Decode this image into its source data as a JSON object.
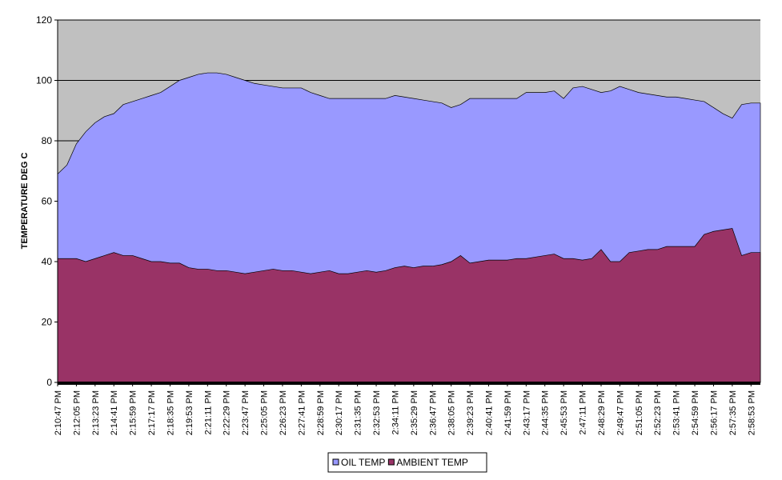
{
  "chart_data": {
    "type": "area",
    "y_label": "TEMPERATURE DEG C",
    "categories": [
      "2:10:47 PM",
      null,
      "2:12:05 PM",
      null,
      "2:13:23 PM",
      null,
      "2:14:41 PM",
      null,
      "2:15:59 PM",
      null,
      "2:17:17 PM",
      null,
      "2:18:35 PM",
      null,
      "2:19:53 PM",
      null,
      "2:21:11 PM",
      null,
      "2:22:29 PM",
      null,
      "2:23:47 PM",
      null,
      "2:25:05 PM",
      null,
      "2:26:23 PM",
      null,
      "2:27:41 PM",
      null,
      "2:28:59 PM",
      null,
      "2:30:17 PM",
      null,
      "2:31:35 PM",
      null,
      "2:32:53 PM",
      null,
      "2:34:11 PM",
      null,
      "2:35:29 PM",
      null,
      "2:36:47 PM",
      null,
      "2:38:05 PM",
      null,
      "2:39:23 PM",
      null,
      "2:40:41 PM",
      null,
      "2:41:59 PM",
      null,
      "2:43:17 PM",
      null,
      "2:44:35 PM",
      null,
      "2:45:53 PM",
      null,
      "2:47:11 PM",
      null,
      "2:48:29 PM",
      null,
      "2:49:47 PM",
      null,
      "2:51:05 PM",
      null,
      "2:52:23 PM",
      null,
      "2:53:41 PM",
      null,
      "2:54:59 PM",
      null,
      "2:56:17 PM",
      null,
      "2:57:35 PM",
      null,
      "2:58:53 PM",
      null
    ],
    "series": [
      {
        "name": "OIL TEMP",
        "color": "#9999ff",
        "values": [
          69,
          72,
          79,
          83,
          86,
          88,
          89,
          92,
          93,
          94,
          95,
          96,
          98,
          100,
          101,
          102,
          102.5,
          102.5,
          102,
          101,
          100,
          99,
          98.5,
          98,
          97.5,
          97.5,
          97.5,
          96,
          95,
          94,
          94,
          94,
          94,
          94,
          94,
          94,
          95,
          94.5,
          94,
          93.5,
          93,
          92.5,
          91,
          92,
          94,
          94,
          94,
          94,
          94,
          94,
          96,
          96,
          96,
          96.5,
          94,
          97.5,
          98,
          97,
          96,
          96.5,
          98,
          97,
          96,
          95.5,
          95,
          94.5,
          94.5,
          94,
          93.5,
          93,
          91,
          89,
          87.5,
          92,
          92.5,
          92.5
        ]
      },
      {
        "name": "AMBIENT TEMP",
        "color": "#993366",
        "values": [
          41,
          41,
          41,
          40,
          41,
          42,
          43,
          42,
          42,
          41,
          40,
          40,
          39.5,
          39.5,
          38,
          37.5,
          37.5,
          37,
          37,
          36.5,
          36,
          36.5,
          37,
          37.5,
          37,
          37,
          36.5,
          36,
          36.5,
          37,
          36,
          36,
          36.5,
          37,
          36.5,
          37,
          38,
          38.5,
          38,
          38.5,
          38.5,
          39,
          40,
          42,
          39.5,
          40,
          40.5,
          40.5,
          40.5,
          41,
          41,
          41.5,
          42,
          42.5,
          41,
          41,
          40.5,
          41,
          44,
          40,
          40,
          43,
          43.5,
          44,
          44,
          45,
          45,
          45,
          45,
          49,
          50,
          50.5,
          51,
          42,
          43,
          43
        ]
      }
    ],
    "ylim": [
      0,
      120
    ],
    "yticks": [
      0,
      20,
      40,
      60,
      80,
      100,
      120
    ],
    "grid": true,
    "plot_background": "#c0c0c0",
    "legend": "bottom"
  }
}
